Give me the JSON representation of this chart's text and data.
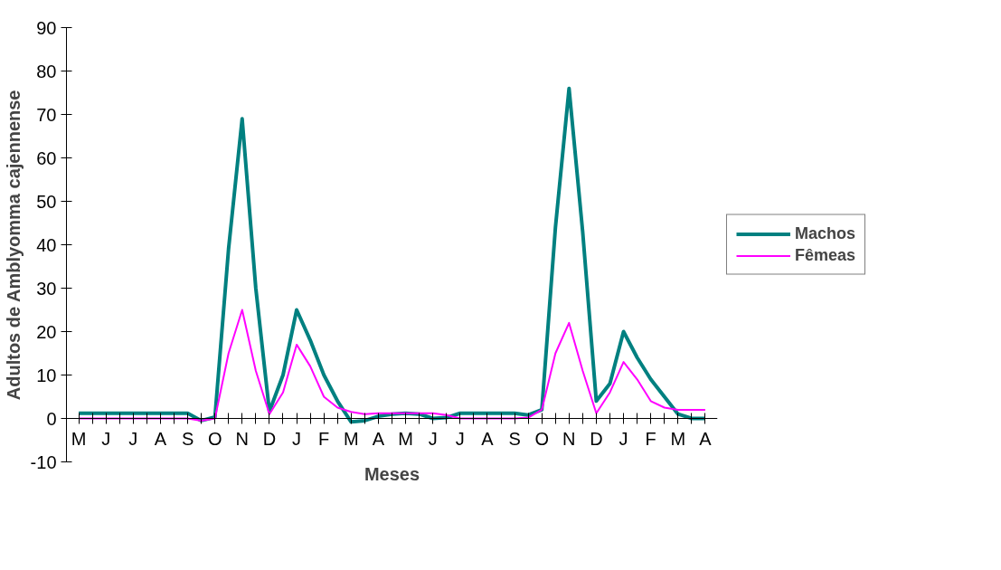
{
  "chart_data": {
    "type": "line",
    "xlabel": "Meses",
    "ylabel": "Adultos de Amblyomma cajennense",
    "categories": [
      "M",
      null,
      "J",
      null,
      "J",
      null,
      "A",
      null,
      "S",
      null,
      "O",
      null,
      "N",
      null,
      "D",
      null,
      "J",
      null,
      "F",
      null,
      "M",
      null,
      "A",
      null,
      "M",
      null,
      "J",
      null,
      "J",
      null,
      "A",
      null,
      "S",
      null,
      "O",
      null,
      "N",
      null,
      "D",
      null,
      "J",
      null,
      "F",
      null,
      "M",
      null,
      "A"
    ],
    "ylim": [
      -10,
      90
    ],
    "yticks": [
      -10,
      0,
      10,
      20,
      30,
      40,
      50,
      60,
      70,
      80,
      90
    ],
    "grid": false,
    "legend": "right",
    "marker": "none",
    "line_style": "solid",
    "series": [
      {
        "name": "Machos",
        "color": "#008080",
        "values": [
          1.2,
          1.2,
          1.2,
          1.2,
          1.2,
          1.2,
          1.2,
          1.2,
          1.2,
          -0.5,
          0.3,
          39,
          69,
          30,
          1.6,
          10,
          25,
          18,
          10,
          4,
          -0.8,
          -0.5,
          0.5,
          1,
          1.2,
          1,
          0,
          0.2,
          1.2,
          1.2,
          1.2,
          1.2,
          1.2,
          0.8,
          2,
          44,
          76,
          43,
          4,
          8,
          20,
          14,
          9,
          5,
          1,
          0,
          0
        ]
      },
      {
        "name": "Fêmeas",
        "color": "#ff00ff",
        "values": [
          0,
          0,
          0,
          0,
          0,
          0,
          0,
          0,
          0,
          -0.5,
          0,
          15,
          25,
          11,
          1,
          6,
          17,
          12,
          5,
          2.5,
          1.5,
          1,
          1.2,
          1.2,
          1.2,
          1.2,
          1.2,
          0.8,
          0,
          0,
          0,
          0,
          0,
          0.2,
          2,
          15,
          22,
          11,
          1.2,
          6,
          13,
          9,
          4,
          2.5,
          2,
          2,
          2
        ]
      }
    ]
  }
}
